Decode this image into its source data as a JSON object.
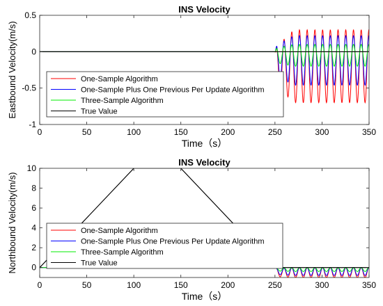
{
  "chart_data": [
    {
      "type": "line",
      "title": "INS Velocity",
      "xlabel": "Time（s）",
      "ylabel": "Eastbound Velocity(m/s)",
      "xlim": [
        0,
        350
      ],
      "ylim": [
        -1,
        0.5
      ],
      "xticks": [
        0,
        50,
        100,
        150,
        200,
        250,
        300,
        350
      ],
      "yticks": [
        -1,
        -0.5,
        0,
        0.5
      ],
      "grid": false,
      "legend_position": "bottom-left",
      "oscillation": {
        "start": 250,
        "period": 8.2
      },
      "series": [
        {
          "name": "One-Sample Algorithm",
          "color": "#ff0000",
          "x": [
            0,
            250,
            350
          ],
          "y": [
            0,
            0,
            0
          ],
          "amplitude_start": 0.25,
          "amplitude_max": 0.5,
          "offset": -0.2
        },
        {
          "name": "One-Sample Plus One Previous Per Update Algorithm",
          "color": "#0000ff",
          "x": [
            0,
            250,
            350
          ],
          "y": [
            0,
            0,
            0
          ],
          "amplitude_start": 0.2,
          "amplitude_max": 0.34,
          "offset": -0.12
        },
        {
          "name": "Three-Sample Algorithm",
          "color": "#00ee00",
          "x": [
            0,
            250,
            350
          ],
          "y": [
            0,
            0,
            0
          ],
          "amplitude_start": 0.1,
          "amplitude_max": 0.15,
          "offset": -0.05
        },
        {
          "name": "True Value",
          "color": "#000000",
          "x": [
            0,
            250,
            350
          ],
          "y": [
            0,
            0,
            0
          ]
        }
      ]
    },
    {
      "type": "line",
      "title": "INS Velocity",
      "xlabel": "Time（s）",
      "ylabel": "Northbound Velocity(m/s)",
      "xlim": [
        0,
        350
      ],
      "ylim": [
        -1,
        10
      ],
      "xticks": [
        0,
        50,
        100,
        150,
        200,
        250,
        300,
        350
      ],
      "yticks": [
        0,
        2,
        4,
        6,
        8,
        10
      ],
      "grid": false,
      "legend_position": "bottom-left",
      "oscillation": {
        "start": 250,
        "period": 8.2
      },
      "series": [
        {
          "name": "One-Sample Algorithm",
          "color": "#ff0000",
          "x": [
            0,
            250,
            350
          ],
          "y": [
            0,
            0,
            0
          ],
          "amplitude_start": 0.4,
          "amplitude_max": 0.5,
          "offset": -0.5
        },
        {
          "name": "One-Sample Plus One Previous Per Update Algorithm",
          "color": "#0000ff",
          "x": [
            0,
            250,
            350
          ],
          "y": [
            0,
            0,
            0
          ],
          "amplitude_start": 0.3,
          "amplitude_max": 0.4,
          "offset": -0.4
        },
        {
          "name": "Three-Sample Algorithm",
          "color": "#00ee00",
          "x": [
            0,
            250,
            350
          ],
          "y": [
            0,
            0,
            0
          ],
          "amplitude_start": 0.15,
          "amplitude_max": 0.2,
          "offset": -0.2
        },
        {
          "name": "True Value",
          "color": "#000000",
          "x": [
            0,
            100,
            150,
            250,
            350
          ],
          "y": [
            0,
            10,
            10,
            0,
            0
          ]
        }
      ]
    }
  ]
}
